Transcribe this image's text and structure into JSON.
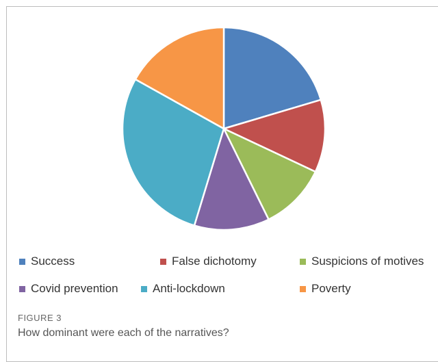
{
  "figure": {
    "label": "FIGURE 3",
    "caption": "How dominant were each of the narratives?"
  },
  "chart_data": {
    "type": "pie",
    "title": "",
    "legend_position": "bottom",
    "start_angle_deg": 0,
    "direction": "clockwise",
    "slices": [
      {
        "label": "Success",
        "value": 20.4,
        "color": "#4F81BD"
      },
      {
        "label": "False dichotomy",
        "value": 11.6,
        "color": "#C0504D"
      },
      {
        "label": "Suspicions of motives",
        "value": 10.7,
        "color": "#9BBB59"
      },
      {
        "label": "Covid prevention",
        "value": 12.0,
        "color": "#8064A2"
      },
      {
        "label": "Anti-lockdown",
        "value": 28.4,
        "color": "#4BACC6"
      },
      {
        "label": "Poverty",
        "value": 16.9,
        "color": "#F79646"
      }
    ]
  }
}
